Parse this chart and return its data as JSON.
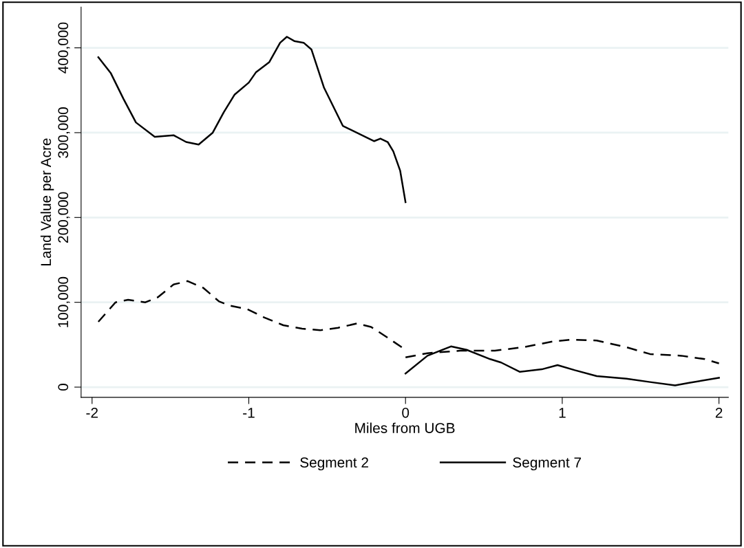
{
  "chart_data": {
    "type": "line",
    "xlabel": "Miles from UGB",
    "ylabel": "Land Value per Acre",
    "xlim": [
      -2.07,
      2.06
    ],
    "ylim": [
      -12000,
      448000
    ],
    "xticks": [
      {
        "value": -2,
        "label": "-2"
      },
      {
        "value": -1,
        "label": "-1"
      },
      0,
      1,
      2
    ],
    "yticks": [
      0,
      {
        "value": 100000,
        "label": "100,000"
      },
      {
        "value": 200000,
        "label": "200,000"
      },
      {
        "value": 300000,
        "label": "300,000"
      },
      {
        "value": 400000,
        "label": "400,000"
      }
    ],
    "grid": "y",
    "legend": "bottom",
    "marker": "none",
    "series": [
      {
        "name": "Segment 2",
        "color": "#000000",
        "line_style": "dashed",
        "x": [
          -1.96,
          -1.85,
          -1.77,
          -1.66,
          -1.58,
          -1.48,
          -1.39,
          -1.29,
          -1.19,
          -1.12,
          -1.01,
          -0.9,
          -0.78,
          -0.66,
          -0.545,
          -0.43,
          -0.31,
          -0.22,
          -0.12,
          0.0,
          0.0,
          0.14,
          0.35,
          0.57,
          0.75,
          0.945,
          1.06,
          1.22,
          1.41,
          1.56,
          1.76,
          1.91,
          2.0
        ],
        "values": [
          77000,
          100000,
          103000,
          100000,
          106000,
          121000,
          125000,
          117000,
          101000,
          96000,
          92000,
          82000,
          73000,
          69000,
          67000,
          70000,
          75000,
          71000,
          59000,
          44000,
          35000,
          40000,
          43000,
          43000,
          47000,
          54000,
          56000,
          55000,
          47000,
          39000,
          37000,
          33000,
          28000
        ]
      },
      {
        "name": "Segment 7",
        "color": "#000000",
        "line_style": "solid",
        "x": [
          -1.96,
          -1.88,
          -1.8,
          -1.72,
          -1.6,
          -1.48,
          -1.4,
          -1.32,
          -1.23,
          -1.16,
          -1.09,
          -1.0,
          -0.955,
          -0.87,
          -0.8,
          -0.757,
          -0.71,
          -0.65,
          -0.6,
          -0.52,
          -0.4,
          -0.2,
          -0.16,
          -0.114,
          -0.078,
          -0.034,
          0.0,
          0.0,
          0.14,
          0.29,
          0.39,
          0.54,
          0.61,
          0.73,
          0.87,
          0.97,
          1.08,
          1.22,
          1.41,
          1.56,
          1.72,
          1.81,
          2.0
        ],
        "values": [
          389000,
          370000,
          340000,
          312000,
          295000,
          297000,
          289000,
          286000,
          300000,
          324000,
          345000,
          359000,
          371000,
          383000,
          406000,
          413000,
          408000,
          406000,
          398000,
          353000,
          308000,
          290000,
          293000,
          289000,
          278000,
          255000,
          218000,
          16000,
          37000,
          48000,
          44000,
          33000,
          29000,
          18000,
          21000,
          26000,
          20000,
          13000,
          10000,
          6000,
          2000,
          5000,
          11000
        ]
      }
    ]
  }
}
